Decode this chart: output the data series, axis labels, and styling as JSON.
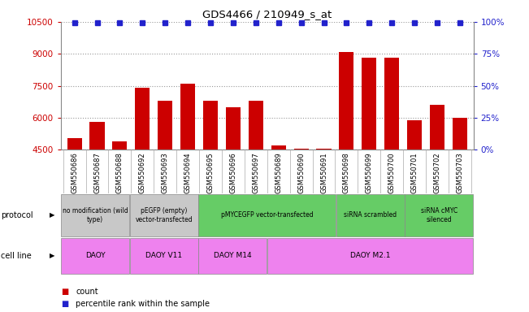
{
  "title": "GDS4466 / 210949_s_at",
  "samples": [
    "GSM550686",
    "GSM550687",
    "GSM550688",
    "GSM550692",
    "GSM550693",
    "GSM550694",
    "GSM550695",
    "GSM550696",
    "GSM550697",
    "GSM550689",
    "GSM550690",
    "GSM550691",
    "GSM550698",
    "GSM550699",
    "GSM550700",
    "GSM550701",
    "GSM550702",
    "GSM550703"
  ],
  "counts": [
    5050,
    5800,
    4900,
    7400,
    6800,
    7600,
    6800,
    6500,
    6800,
    4700,
    4550,
    4550,
    9100,
    8800,
    8800,
    5900,
    6600,
    6000
  ],
  "percentiles": [
    99,
    99,
    99,
    99,
    99,
    99,
    99,
    99,
    99,
    99,
    99,
    99,
    99,
    99,
    99,
    99,
    99,
    99
  ],
  "ylim_left": [
    4500,
    10500
  ],
  "ylim_right": [
    0,
    100
  ],
  "yticks_left": [
    4500,
    6000,
    7500,
    9000,
    10500
  ],
  "yticks_right": [
    0,
    25,
    50,
    75,
    100
  ],
  "bar_color": "#cc0000",
  "dot_color": "#2222cc",
  "protocol_groups": [
    {
      "label": "no modification (wild\ntype)",
      "start": 0,
      "end": 3,
      "color": "#c8c8c8"
    },
    {
      "label": "pEGFP (empty)\nvector-transfected",
      "start": 3,
      "end": 6,
      "color": "#c8c8c8"
    },
    {
      "label": "pMYCEGFP vector-transfected",
      "start": 6,
      "end": 12,
      "color": "#66cc66"
    },
    {
      "label": "siRNA scrambled",
      "start": 12,
      "end": 15,
      "color": "#66cc66"
    },
    {
      "label": "siRNA cMYC\nsilenced",
      "start": 15,
      "end": 18,
      "color": "#66cc66"
    }
  ],
  "cellline_groups": [
    {
      "label": "DAOY",
      "start": 0,
      "end": 3,
      "color": "#ee82ee"
    },
    {
      "label": "DAOY V11",
      "start": 3,
      "end": 6,
      "color": "#ee82ee"
    },
    {
      "label": "DAOY M14",
      "start": 6,
      "end": 9,
      "color": "#ee82ee"
    },
    {
      "label": "DAOY M2.1",
      "start": 9,
      "end": 18,
      "color": "#ee82ee"
    }
  ],
  "background_color": "#ffffff",
  "plot_bg_color": "#ffffff",
  "grid_color": "#555555",
  "tick_color_left": "#cc0000",
  "tick_color_right": "#2222cc",
  "xtick_bg_color": "#d0d0d0"
}
